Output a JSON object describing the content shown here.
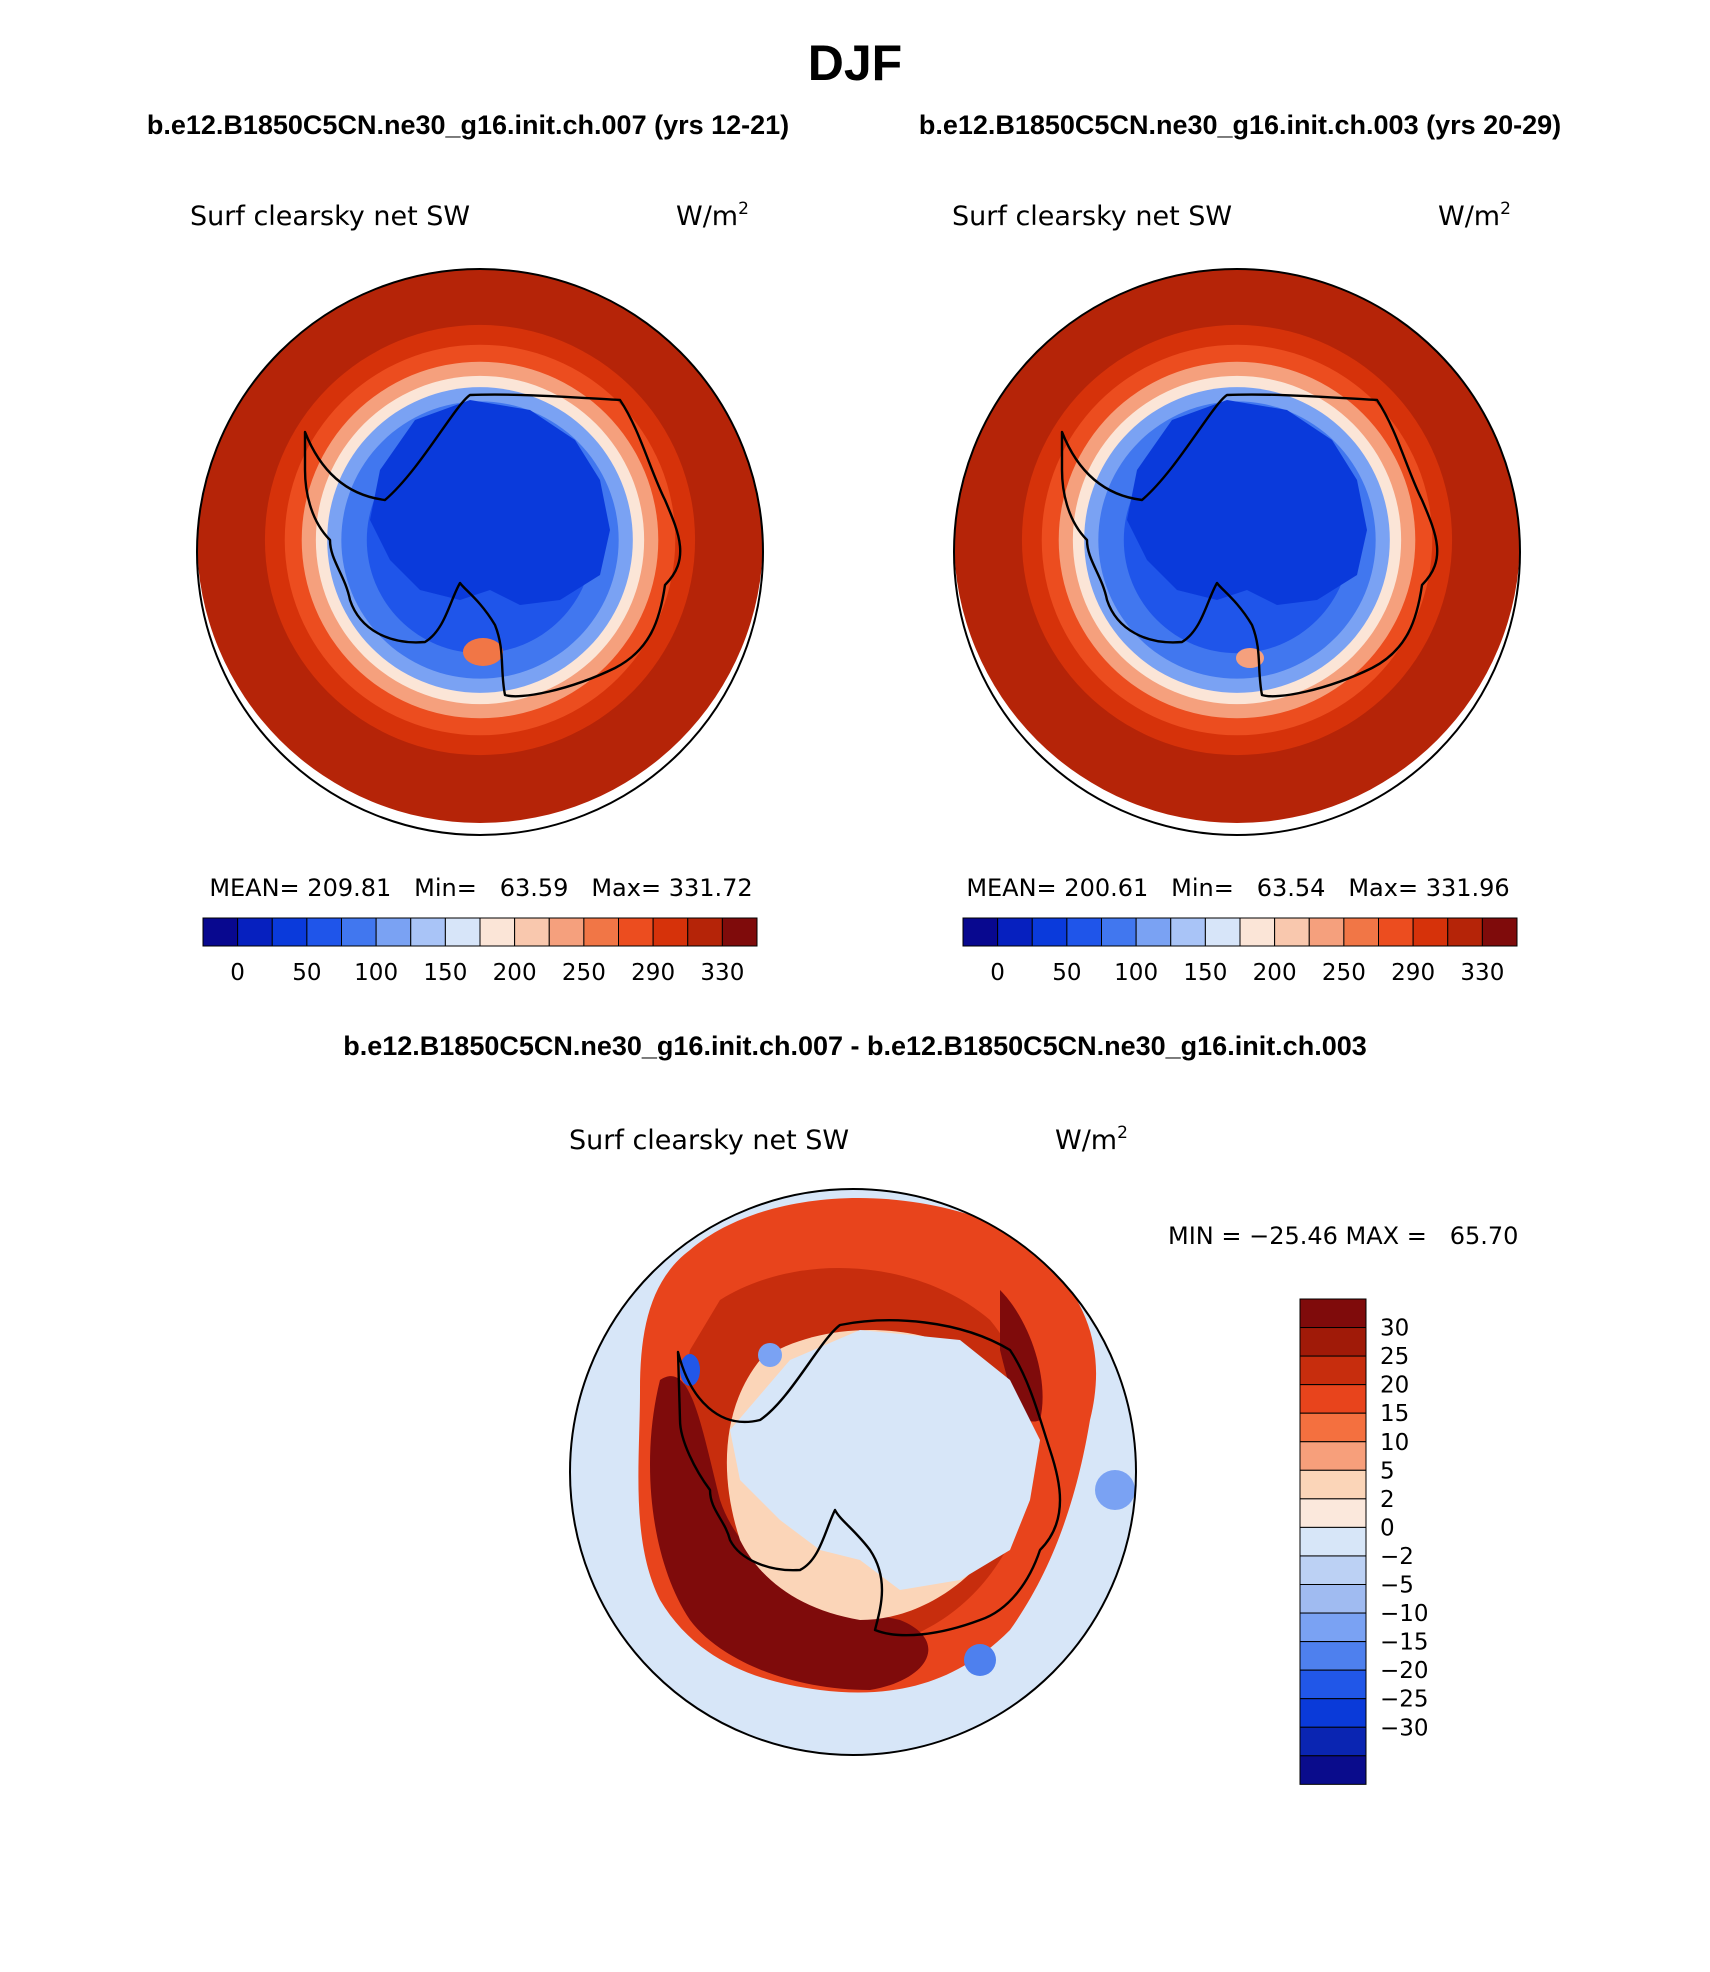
{
  "figure": {
    "title": "DJF",
    "case_labels": {
      "left": "b.e12.B1850C5CN.ne30_g16.init.ch.007 (yrs 12-21)",
      "right": "b.e12.B1850C5CN.ne30_g16.init.ch.003 (yrs 20-29)"
    },
    "diff_title": "b.e12.B1850C5CN.ne30_g16.init.ch.007 - b.e12.B1850C5CN.ne30_g16.init.ch.003"
  },
  "panels": {
    "left": {
      "variable": "Surf clearsky net SW",
      "units": "W/m",
      "units_exp": "2",
      "stats": "MEAN= 209.81   Min=   63.59   Max= 331.72",
      "mean": 209.81,
      "min": 63.59,
      "max": 331.72
    },
    "right": {
      "variable": "Surf clearsky net SW",
      "units": "W/m",
      "units_exp": "2",
      "stats": "MEAN= 200.61   Min=   63.54   Max= 331.96",
      "mean": 200.61,
      "min": 63.54,
      "max": 331.96
    },
    "diff": {
      "variable": "Surf clearsky net SW",
      "units": "W/m",
      "units_exp": "2",
      "stats": "MIN = −25.46 MAX =   65.70",
      "min": -25.46,
      "max": 65.7
    }
  },
  "colorbars": {
    "abs": {
      "colors": [
        "#08088f",
        "#0620bf",
        "#0a3adb",
        "#1f55ea",
        "#4177ef",
        "#7aa2f3",
        "#a9c4f7",
        "#d7e5f9",
        "#fbe5d7",
        "#f9c8ae",
        "#f5a07d",
        "#f17646",
        "#ec4d1f",
        "#d6320a",
        "#b52408",
        "#7f0b0b"
      ],
      "labels": [
        "0",
        "50",
        "100",
        "150",
        "200",
        "250",
        "290",
        "330"
      ]
    },
    "diff": {
      "colors": [
        "#7f0b0b",
        "#a01a08",
        "#c72d0d",
        "#e8441c",
        "#f4703f",
        "#f79f7b",
        "#fbd5b8",
        "#fbe8dc",
        "#d7e6f8",
        "#bcd1f4",
        "#a0bbf1",
        "#7aa2f3",
        "#4e80ee",
        "#2157e8",
        "#0a3ad9",
        "#0a25b2",
        "#0a0c8c"
      ],
      "labels": [
        "30",
        "25",
        "20",
        "15",
        "10",
        "5",
        "2",
        "0",
        "−2",
        "−5",
        "−10",
        "−15",
        "−20",
        "−25",
        "−30"
      ]
    }
  },
  "fields": {
    "abs_rings": [
      {
        "color": "#b52408",
        "r": 1.0
      },
      {
        "color": "#d6320a",
        "r": 0.76
      },
      {
        "color": "#ec4d1f",
        "r": 0.69
      },
      {
        "color": "#f5a07d",
        "r": 0.63
      },
      {
        "color": "#fbe5d7",
        "r": 0.58
      },
      {
        "color": "#7aa2f3",
        "r": 0.54
      },
      {
        "color": "#4177ef",
        "r": 0.49
      },
      {
        "color": "#1f55ea",
        "r": 0.4
      }
    ]
  }
}
